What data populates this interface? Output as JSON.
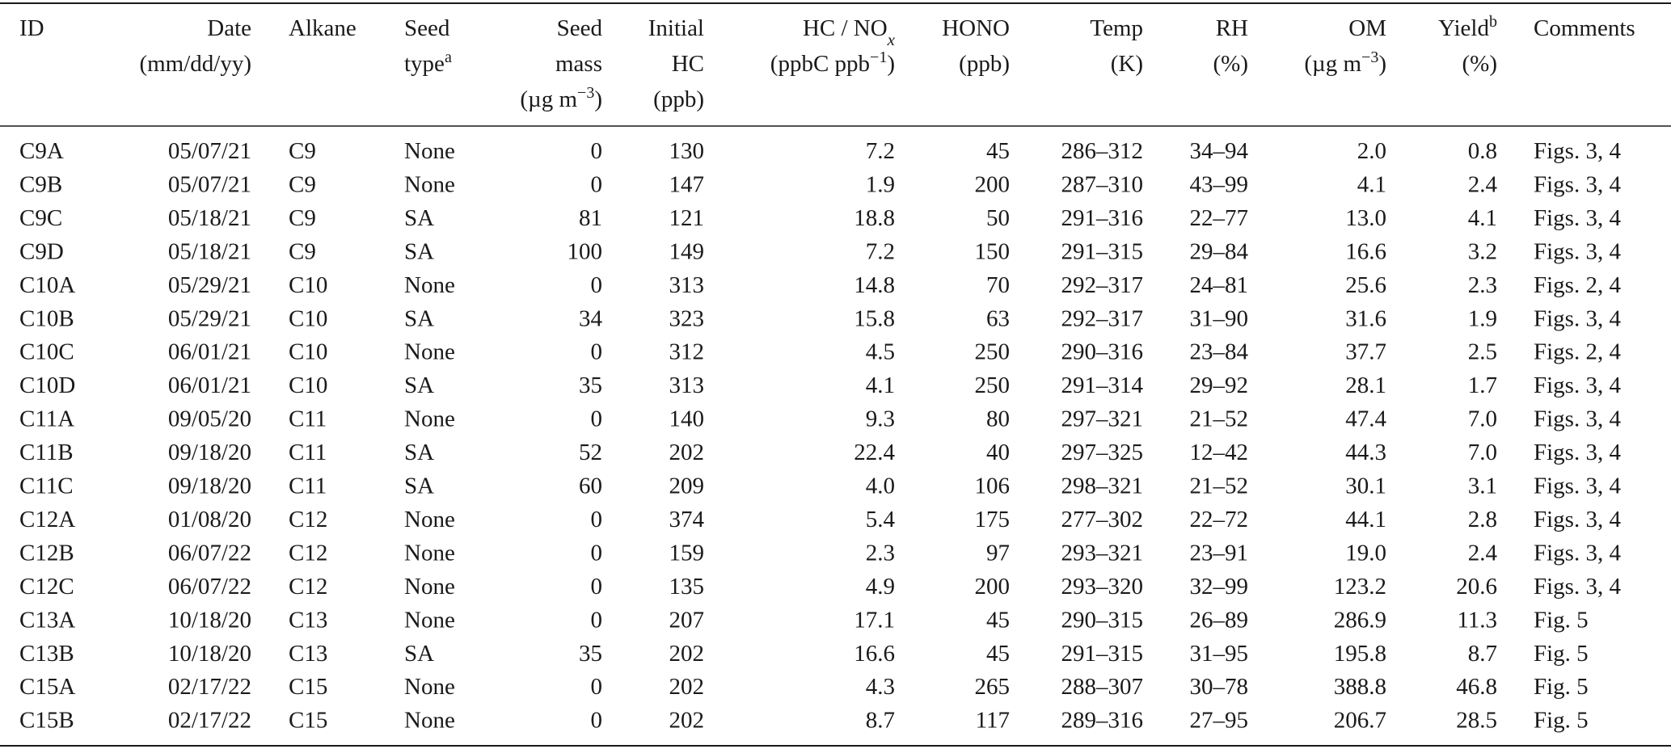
{
  "table": {
    "header": [
      [
        [
          {
            "text": "ID"
          }
        ]
      ],
      [
        [
          {
            "text": "Date"
          }
        ],
        [
          {
            "text": "(mm/dd/yy)"
          }
        ]
      ],
      [
        [
          {
            "text": "Alkane"
          }
        ]
      ],
      [
        [
          {
            "text": "Seed"
          }
        ],
        [
          {
            "text": "type"
          },
          {
            "text": "a",
            "style": "sup"
          }
        ]
      ],
      [
        [
          {
            "text": "Seed"
          }
        ],
        [
          {
            "text": "mass"
          }
        ],
        [
          {
            "text": "(µg m"
          },
          {
            "text": "−3",
            "style": "sup"
          },
          {
            "text": ")"
          }
        ]
      ],
      [
        [
          {
            "text": "Initial"
          }
        ],
        [
          {
            "text": "HC"
          }
        ],
        [
          {
            "text": "(ppb)"
          }
        ]
      ],
      [
        [
          {
            "text": "HC / NO"
          },
          {
            "text": "x",
            "style": "sub"
          }
        ],
        [
          {
            "text": "(ppbC ppb"
          },
          {
            "text": "−1",
            "style": "sup"
          },
          {
            "text": ")"
          }
        ]
      ],
      [
        [
          {
            "text": "HONO"
          }
        ],
        [
          {
            "text": "(ppb)"
          }
        ]
      ],
      [
        [
          {
            "text": "Temp"
          }
        ],
        [
          {
            "text": "(K)"
          }
        ]
      ],
      [
        [
          {
            "text": "RH"
          }
        ],
        [
          {
            "text": "(%)"
          }
        ]
      ],
      [
        [
          {
            "text": "OM"
          }
        ],
        [
          {
            "text": "(µg m"
          },
          {
            "text": "−3",
            "style": "sup"
          },
          {
            "text": ")"
          }
        ]
      ],
      [
        [
          {
            "text": "Yield"
          },
          {
            "text": "b",
            "style": "sup"
          }
        ],
        [
          {
            "text": "(%)"
          }
        ]
      ],
      [
        [
          {
            "text": "Comments"
          }
        ]
      ]
    ],
    "rows": [
      [
        "C9A",
        "05/07/21",
        "C9",
        "None",
        "0",
        "130",
        "7.2",
        "45",
        "286–312",
        "34–94",
        "2.0",
        "0.8",
        "Figs. 3, 4"
      ],
      [
        "C9B",
        "05/07/21",
        "C9",
        "None",
        "0",
        "147",
        "1.9",
        "200",
        "287–310",
        "43–99",
        "4.1",
        "2.4",
        "Figs. 3, 4"
      ],
      [
        "C9C",
        "05/18/21",
        "C9",
        "SA",
        "81",
        "121",
        "18.8",
        "50",
        "291–316",
        "22–77",
        "13.0",
        "4.1",
        "Figs. 3, 4"
      ],
      [
        "C9D",
        "05/18/21",
        "C9",
        "SA",
        "100",
        "149",
        "7.2",
        "150",
        "291–315",
        "29–84",
        "16.6",
        "3.2",
        "Figs. 3, 4"
      ],
      [
        "C10A",
        "05/29/21",
        "C10",
        "None",
        "0",
        "313",
        "14.8",
        "70",
        "292–317",
        "24–81",
        "25.6",
        "2.3",
        "Figs. 2, 4"
      ],
      [
        "C10B",
        "05/29/21",
        "C10",
        "SA",
        "34",
        "323",
        "15.8",
        "63",
        "292–317",
        "31–90",
        "31.6",
        "1.9",
        "Figs. 3, 4"
      ],
      [
        "C10C",
        "06/01/21",
        "C10",
        "None",
        "0",
        "312",
        "4.5",
        "250",
        "290–316",
        "23–84",
        "37.7",
        "2.5",
        "Figs. 2, 4"
      ],
      [
        "C10D",
        "06/01/21",
        "C10",
        "SA",
        "35",
        "313",
        "4.1",
        "250",
        "291–314",
        "29–92",
        "28.1",
        "1.7",
        "Figs. 3, 4"
      ],
      [
        "C11A",
        "09/05/20",
        "C11",
        "None",
        "0",
        "140",
        "9.3",
        "80",
        "297–321",
        "21–52",
        "47.4",
        "7.0",
        "Figs. 3, 4"
      ],
      [
        "C11B",
        "09/18/20",
        "C11",
        "SA",
        "52",
        "202",
        "22.4",
        "40",
        "297–325",
        "12–42",
        "44.3",
        "7.0",
        "Figs. 3, 4"
      ],
      [
        "C11C",
        "09/18/20",
        "C11",
        "SA",
        "60",
        "209",
        "4.0",
        "106",
        "298–321",
        "21–52",
        "30.1",
        "3.1",
        "Figs. 3, 4"
      ],
      [
        "C12A",
        "01/08/20",
        "C12",
        "None",
        "0",
        "374",
        "5.4",
        "175",
        "277–302",
        "22–72",
        "44.1",
        "2.8",
        "Figs. 3, 4"
      ],
      [
        "C12B",
        "06/07/22",
        "C12",
        "None",
        "0",
        "159",
        "2.3",
        "97",
        "293–321",
        "23–91",
        "19.0",
        "2.4",
        "Figs. 3, 4"
      ],
      [
        "C12C",
        "06/07/22",
        "C12",
        "None",
        "0",
        "135",
        "4.9",
        "200",
        "293–320",
        "32–99",
        "123.2",
        "20.6",
        "Figs. 3, 4"
      ],
      [
        "C13A",
        "10/18/20",
        "C13",
        "None",
        "0",
        "207",
        "17.1",
        "45",
        "290–315",
        "26–89",
        "286.9",
        "11.3",
        "Fig. 5"
      ],
      [
        "C13B",
        "10/18/20",
        "C13",
        "SA",
        "35",
        "202",
        "16.6",
        "45",
        "291–315",
        "31–95",
        "195.8",
        "8.7",
        "Fig. 5"
      ],
      [
        "C15A",
        "02/17/22",
        "C15",
        "None",
        "0",
        "202",
        "4.3",
        "265",
        "288–307",
        "30–78",
        "388.8",
        "46.8",
        "Fig. 5"
      ],
      [
        "C15B",
        "02/17/22",
        "C15",
        "None",
        "0",
        "202",
        "8.7",
        "117",
        "289–316",
        "27–95",
        "206.7",
        "28.5",
        "Fig. 5"
      ]
    ]
  }
}
